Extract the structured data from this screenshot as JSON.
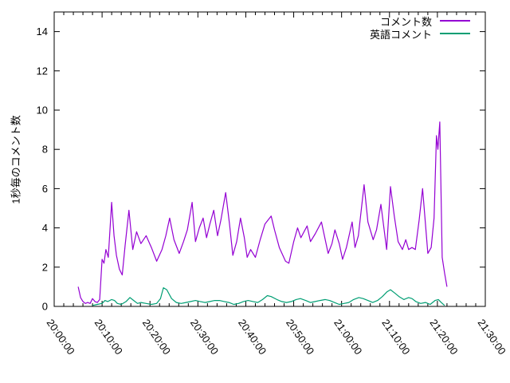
{
  "chart_data": {
    "type": "line",
    "title": "",
    "xlabel": "",
    "ylabel": "1秒毎のコメント数",
    "x_unit": "minutes after 20:00:00",
    "x_range_minutes": [
      0,
      90
    ],
    "x_major_tick_minutes": 10,
    "x_minor_tick_minutes": 2,
    "x_tick_labels": [
      "20:00:00",
      "20:10:00",
      "20:20:00",
      "20:30:00",
      "20:40:00",
      "20:50:00",
      "21:00:00",
      "21:10:00",
      "21:20:00",
      "21:30:00"
    ],
    "ylim": [
      0,
      15
    ],
    "y_ticks": [
      0,
      2,
      4,
      6,
      8,
      10,
      12,
      14
    ],
    "grid": false,
    "legend_position": "top-right-inside",
    "border_color": "#000000",
    "background_color": "#ffffff",
    "series": [
      {
        "name": "コメント数",
        "color": "#9400d3",
        "points": [
          [
            5,
            1.0
          ],
          [
            5.5,
            0.45
          ],
          [
            6,
            0.25
          ],
          [
            6.5,
            0.15
          ],
          [
            7,
            0.2
          ],
          [
            7.5,
            0.15
          ],
          [
            8,
            0.4
          ],
          [
            8.5,
            0.25
          ],
          [
            9,
            0.2
          ],
          [
            9.5,
            0.35
          ],
          [
            10,
            2.4
          ],
          [
            10.4,
            2.2
          ],
          [
            10.8,
            2.9
          ],
          [
            11.3,
            2.5
          ],
          [
            12,
            5.3
          ],
          [
            12.5,
            3.6
          ],
          [
            13,
            2.6
          ],
          [
            13.6,
            1.9
          ],
          [
            14.2,
            1.6
          ],
          [
            14.8,
            3.1
          ],
          [
            15.6,
            4.9
          ],
          [
            16.4,
            2.9
          ],
          [
            17.2,
            3.8
          ],
          [
            18.1,
            3.2
          ],
          [
            19.2,
            3.6
          ],
          [
            20.3,
            3.0
          ],
          [
            21.4,
            2.3
          ],
          [
            22.5,
            2.9
          ],
          [
            23.3,
            3.6
          ],
          [
            24.1,
            4.5
          ],
          [
            25,
            3.4
          ],
          [
            26.1,
            2.7
          ],
          [
            27,
            3.3
          ],
          [
            27.8,
            3.9
          ],
          [
            28.8,
            5.3
          ],
          [
            29.5,
            3.3
          ],
          [
            30.3,
            4.0
          ],
          [
            31.1,
            4.5
          ],
          [
            31.8,
            3.5
          ],
          [
            32.5,
            4.2
          ],
          [
            33.3,
            4.9
          ],
          [
            34.1,
            3.6
          ],
          [
            34.8,
            4.4
          ],
          [
            35.8,
            5.8
          ],
          [
            36.6,
            4.2
          ],
          [
            37.3,
            2.6
          ],
          [
            38.1,
            3.3
          ],
          [
            38.9,
            4.5
          ],
          [
            39.7,
            3.5
          ],
          [
            40.3,
            2.5
          ],
          [
            41,
            2.9
          ],
          [
            42,
            2.5
          ],
          [
            43,
            3.4
          ],
          [
            44,
            4.2
          ],
          [
            45.3,
            4.6
          ],
          [
            46,
            3.9
          ],
          [
            47,
            3.0
          ],
          [
            48.3,
            2.3
          ],
          [
            49,
            2.2
          ],
          [
            50,
            3.3
          ],
          [
            50.8,
            4.0
          ],
          [
            51.5,
            3.5
          ],
          [
            52.8,
            4.1
          ],
          [
            53.5,
            3.3
          ],
          [
            54.5,
            3.7
          ],
          [
            55.8,
            4.3
          ],
          [
            57.2,
            2.7
          ],
          [
            58,
            3.2
          ],
          [
            58.6,
            3.9
          ],
          [
            59.5,
            3.2
          ],
          [
            60.2,
            2.4
          ],
          [
            61,
            3.0
          ],
          [
            62.2,
            4.3
          ],
          [
            62.8,
            3.0
          ],
          [
            63.5,
            3.6
          ],
          [
            64.7,
            6.2
          ],
          [
            65.5,
            4.3
          ],
          [
            66.6,
            3.4
          ],
          [
            67.3,
            3.9
          ],
          [
            68.2,
            5.2
          ],
          [
            69.4,
            2.9
          ],
          [
            70.2,
            6.1
          ],
          [
            71,
            4.6
          ],
          [
            71.8,
            3.3
          ],
          [
            72.7,
            2.9
          ],
          [
            73.4,
            3.4
          ],
          [
            74,
            2.9
          ],
          [
            74.7,
            3.0
          ],
          [
            75.4,
            2.9
          ],
          [
            76.2,
            4.4
          ],
          [
            76.9,
            6.0
          ],
          [
            78,
            2.7
          ],
          [
            78.7,
            3.0
          ],
          [
            79.3,
            4.5
          ],
          [
            79.8,
            8.7
          ],
          [
            80.1,
            8.0
          ],
          [
            80.5,
            9.4
          ],
          [
            81,
            2.5
          ],
          [
            81.5,
            1.7
          ],
          [
            82,
            1.0
          ]
        ]
      },
      {
        "name": "英語コメント",
        "color": "#009e73",
        "points": [
          [
            8,
            0.05
          ],
          [
            9,
            0.1
          ],
          [
            10,
            0.15
          ],
          [
            10.6,
            0.3
          ],
          [
            11.2,
            0.25
          ],
          [
            12,
            0.35
          ],
          [
            12.6,
            0.3
          ],
          [
            13.2,
            0.15
          ],
          [
            14,
            0.1
          ],
          [
            15,
            0.25
          ],
          [
            15.8,
            0.45
          ],
          [
            16.6,
            0.3
          ],
          [
            17.4,
            0.15
          ],
          [
            18.1,
            0.2
          ],
          [
            19.2,
            0.15
          ],
          [
            20.3,
            0.1
          ],
          [
            21.4,
            0.15
          ],
          [
            22.2,
            0.4
          ],
          [
            22.8,
            0.95
          ],
          [
            23.5,
            0.85
          ],
          [
            24.5,
            0.4
          ],
          [
            25.5,
            0.2
          ],
          [
            26.5,
            0.15
          ],
          [
            27.5,
            0.2
          ],
          [
            28.5,
            0.25
          ],
          [
            29.5,
            0.3
          ],
          [
            30.5,
            0.25
          ],
          [
            31.5,
            0.2
          ],
          [
            32.5,
            0.25
          ],
          [
            33.5,
            0.3
          ],
          [
            34.5,
            0.3
          ],
          [
            35.5,
            0.25
          ],
          [
            36.5,
            0.2
          ],
          [
            37.5,
            0.1
          ],
          [
            38.5,
            0.15
          ],
          [
            39.5,
            0.25
          ],
          [
            40.5,
            0.3
          ],
          [
            41.5,
            0.25
          ],
          [
            42.5,
            0.2
          ],
          [
            43.5,
            0.35
          ],
          [
            44.5,
            0.55
          ],
          [
            45.3,
            0.5
          ],
          [
            46.5,
            0.35
          ],
          [
            47.5,
            0.25
          ],
          [
            48.5,
            0.2
          ],
          [
            49.5,
            0.25
          ],
          [
            50.5,
            0.35
          ],
          [
            51.4,
            0.4
          ],
          [
            52.5,
            0.3
          ],
          [
            53.5,
            0.2
          ],
          [
            54.5,
            0.25
          ],
          [
            55.5,
            0.3
          ],
          [
            56.6,
            0.35
          ],
          [
            57.5,
            0.3
          ],
          [
            58.5,
            0.2
          ],
          [
            59.5,
            0.1
          ],
          [
            60.5,
            0.15
          ],
          [
            61.5,
            0.2
          ],
          [
            62.5,
            0.35
          ],
          [
            63.6,
            0.45
          ],
          [
            64.5,
            0.4
          ],
          [
            65.5,
            0.3
          ],
          [
            66.5,
            0.2
          ],
          [
            67.5,
            0.3
          ],
          [
            68.5,
            0.5
          ],
          [
            69.5,
            0.75
          ],
          [
            70.2,
            0.85
          ],
          [
            71,
            0.7
          ],
          [
            72,
            0.5
          ],
          [
            73,
            0.35
          ],
          [
            74,
            0.45
          ],
          [
            74.7,
            0.4
          ],
          [
            75.5,
            0.25
          ],
          [
            76.5,
            0.15
          ],
          [
            77.5,
            0.2
          ],
          [
            78.5,
            0.1
          ],
          [
            79.5,
            0.3
          ],
          [
            80.2,
            0.35
          ],
          [
            80.8,
            0.2
          ],
          [
            81.5,
            0.05
          ]
        ]
      }
    ]
  }
}
